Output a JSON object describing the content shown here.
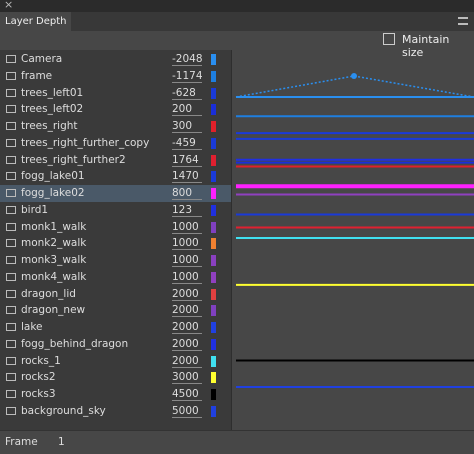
{
  "panel": {
    "close": "×",
    "tab": "Layer Depth",
    "maintain": "Maintain size"
  },
  "layers": [
    {
      "name": "Camera",
      "depth": -2048,
      "color": "#2a8ff0"
    },
    {
      "name": "frame",
      "depth": -1174,
      "color": "#1e7fe0"
    },
    {
      "name": "trees_left01",
      "depth": -628,
      "color": "#1a3ad8"
    },
    {
      "name": "trees_left02",
      "depth": 200,
      "color": "#1a2ed8"
    },
    {
      "name": "trees_right",
      "depth": 300,
      "color": "#e0202a"
    },
    {
      "name": "trees_right_further_copy",
      "depth": -459,
      "color": "#1a3ad8"
    },
    {
      "name": "trees_right_further2",
      "depth": 1764,
      "color": "#e02030"
    },
    {
      "name": "fogg_lake01",
      "depth": 1470,
      "color": "#1a3ad8"
    },
    {
      "name": "fogg_lake02",
      "depth": 800,
      "color": "#ff20ff"
    },
    {
      "name": "bird1",
      "depth": 123,
      "color": "#2030e0"
    },
    {
      "name": "monk1_walk",
      "depth": 1000,
      "color": "#8040c0"
    },
    {
      "name": "monk2_walk",
      "depth": 1000,
      "color": "#f08030"
    },
    {
      "name": "monk3_walk",
      "depth": 1000,
      "color": "#8a40c0"
    },
    {
      "name": "monk4_walk",
      "depth": 1000,
      "color": "#9040c0"
    },
    {
      "name": "dragon_lid",
      "depth": 2000,
      "color": "#e04040"
    },
    {
      "name": "dragon_new",
      "depth": 2000,
      "color": "#8040c0"
    },
    {
      "name": "lake",
      "depth": 2000,
      "color": "#2040e0"
    },
    {
      "name": "fogg_behind_dragon",
      "depth": 2000,
      "color": "#2030e0"
    },
    {
      "name": "rocks_1",
      "depth": 2000,
      "color": "#40e0f0"
    },
    {
      "name": "rocks2",
      "depth": 3000,
      "color": "#ffff30"
    },
    {
      "name": "rocks3",
      "depth": 4500,
      "color": "#000000"
    },
    {
      "name": "background_sky",
      "depth": 5000,
      "color": "#2040e0"
    }
  ],
  "selected": "fogg_lake02",
  "footer": {
    "label": "Frame",
    "value": "1"
  }
}
